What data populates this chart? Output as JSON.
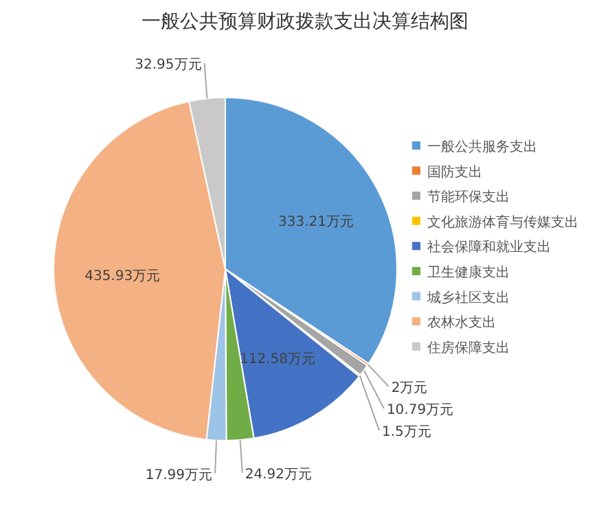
{
  "chart_data": {
    "type": "pie",
    "title": "一般公共预算财政拨款支出决算结构图",
    "categories": [
      "一般公共服务支出",
      "国防支出",
      "节能环保支出",
      "文化旅游体育与传媒支出",
      "社会保障和就业支出",
      "卫生健康支出",
      "城乡社区支出",
      "农林水支出",
      "住房保障支出"
    ],
    "values": [
      333.21,
      2,
      10.79,
      1.5,
      112.58,
      24.92,
      17.99,
      435.93,
      32.95
    ],
    "colors": [
      "#5b9bd5",
      "#ed7d31",
      "#a5a5a5",
      "#ffc000",
      "#4472c4",
      "#70ad47",
      "#9dc3e6",
      "#f4b183",
      "#c9c9c9"
    ],
    "value_labels": [
      "333.21万元",
      "2万元",
      "10.79万元",
      "1.5万元",
      "112.58万元",
      "24.92万元",
      "17.99万元",
      "435.93万元",
      "32.95万元"
    ],
    "legend": "right"
  }
}
